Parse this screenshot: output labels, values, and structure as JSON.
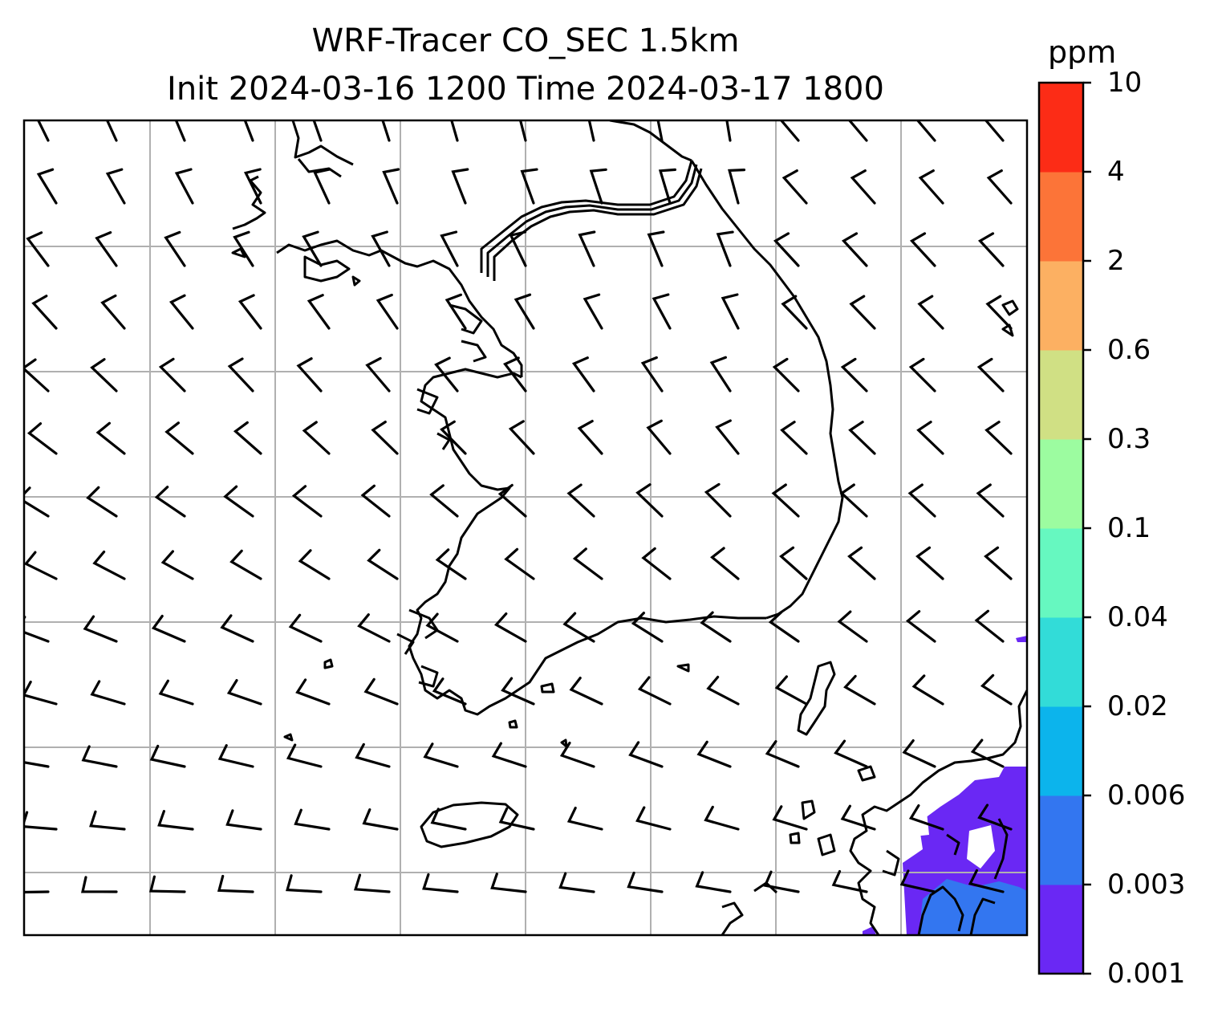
{
  "title": {
    "line1": "WRF-Tracer CO_SEC 1.5km",
    "line2": "Init 2024-03-16 1200 Time 2024-03-17 1800"
  },
  "colorbar": {
    "unit": "ppm",
    "levels": [
      "0.001",
      "0.003",
      "0.006",
      "0.02",
      "0.04",
      "0.1",
      "0.3",
      "0.6",
      "2",
      "4",
      "10"
    ],
    "colors": [
      "#6a28f4",
      "#3376f0",
      "#0cb4ec",
      "#32dcd8",
      "#66f8c0",
      "#9cfca0",
      "#d0e084",
      "#fcb062",
      "#fc7438",
      "#fc2c16"
    ]
  },
  "map": {
    "field": "CO_SEC tracer concentration",
    "colors": {
      "coastline": "#000000",
      "gridline": "#b0b0b0",
      "barb": "#000000",
      "plume_low": "#6a28f4",
      "plume_mid": "#3376f0"
    },
    "icons": [
      "wind-barb-icon"
    ]
  }
}
